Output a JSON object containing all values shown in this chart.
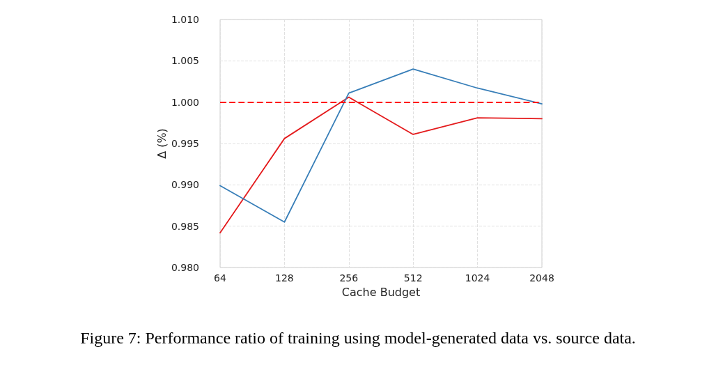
{
  "chart_data": {
    "type": "line",
    "xlabel": "Cache Budget",
    "ylabel": "Δ (%)",
    "categories": [
      "64",
      "128",
      "256",
      "512",
      "1024",
      "2048"
    ],
    "series": [
      {
        "color": "#e41a1c",
        "values": [
          0.9842,
          0.9956,
          1.0006,
          0.9961,
          0.9981,
          0.998
        ]
      },
      {
        "color": "#377eb8",
        "values": [
          0.9899,
          0.9855,
          1.0011,
          1.004,
          1.0017,
          0.9998
        ]
      }
    ],
    "ylim": [
      0.98,
      1.01
    ],
    "yticks": [
      {
        "value": 0.98,
        "label": "0.980"
      },
      {
        "value": 0.985,
        "label": "0.985"
      },
      {
        "value": 0.99,
        "label": "0.990"
      },
      {
        "value": 0.995,
        "label": "0.995"
      },
      {
        "value": 1.0,
        "label": "1.000"
      },
      {
        "value": 1.005,
        "label": "1.005"
      },
      {
        "value": 1.01,
        "label": "1.010"
      }
    ],
    "ref_lines": [
      {
        "axis": "y",
        "value": 1.0,
        "color": "#ff0000",
        "line_style": "dashed"
      }
    ],
    "grid": true,
    "marker": "none",
    "line_style": "solid",
    "annotations": [
      "Figure 7: Performance ratio of training using model-generated data vs. source data."
    ]
  }
}
